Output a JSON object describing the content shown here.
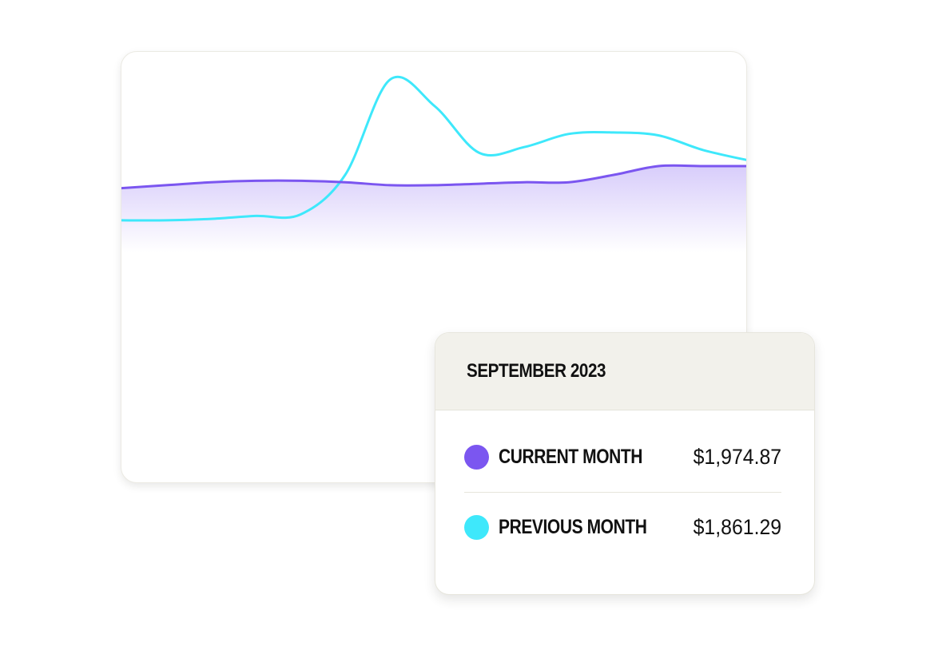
{
  "chart_data": {
    "type": "line",
    "x": [
      0,
      1,
      2,
      3,
      4,
      5,
      6,
      7,
      8,
      9,
      10,
      11,
      12,
      13,
      14
    ],
    "series": [
      {
        "name": "CURRENT MONTH",
        "color": "#7b56f0",
        "fill": true,
        "values": [
          52,
          54,
          56,
          57,
          57,
          56,
          54,
          54,
          55,
          56,
          56,
          61,
          67,
          67,
          67
        ]
      },
      {
        "name": "PREVIOUS MONTH",
        "color": "#3ee8fb",
        "fill": false,
        "values": [
          30,
          30,
          31,
          33,
          34,
          61,
          126,
          108,
          76,
          80,
          89,
          90,
          88,
          78,
          71
        ]
      }
    ],
    "ylim": [
      -150,
      145
    ],
    "grid": false,
    "axes_visible": false
  },
  "tooltip": {
    "title": "SEPTEMBER 2023",
    "rows": [
      {
        "label": "CURRENT MONTH",
        "value": "$1,974.87",
        "dot_color": "#7b56f0"
      },
      {
        "label": "PREVIOUS MONTH",
        "value": "$1,861.29",
        "dot_color": "#3ee8fb"
      }
    ]
  }
}
